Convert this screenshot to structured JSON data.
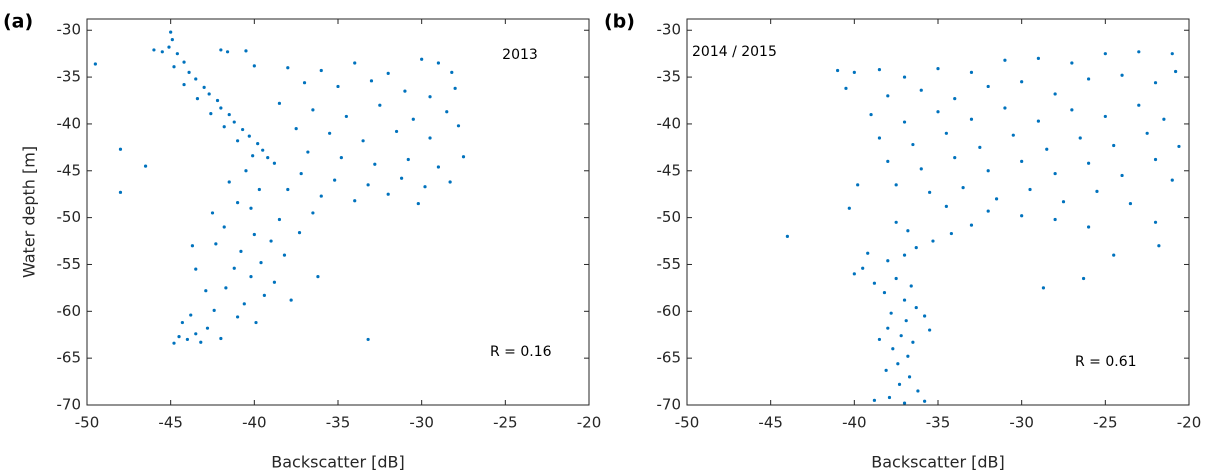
{
  "chart_data": [
    {
      "type": "scatter",
      "panel_label": "(a)",
      "annotation": "2013",
      "stat": "R = 0.16",
      "xlabel": "Backscatter [dB]",
      "ylabel": "Water depth [m]",
      "color": "#0072bd",
      "xlim": [
        -50,
        -20
      ],
      "ylim": [
        -70,
        -28.8
      ],
      "xticks": [
        -50,
        -45,
        -40,
        -35,
        -30,
        -25,
        -20
      ],
      "yticks": [
        -70,
        -65,
        -60,
        -55,
        -50,
        -45,
        -40,
        -35,
        -30
      ],
      "x": [
        -45,
        -44.9,
        -45.1,
        -44.6,
        -45.5,
        -44.2,
        -44.8,
        -43.9,
        -43.5,
        -44.2,
        -43,
        -42.7,
        -43.4,
        -42.2,
        -42,
        -42.6,
        -41.5,
        -41.2,
        -41.8,
        -40.7,
        -40.3,
        -41,
        -39.8,
        -39.5,
        -40.1,
        -39.2,
        -38.8,
        -42,
        -40.5,
        -40,
        -38,
        -36,
        -34,
        -32,
        -30,
        -29,
        -28.2,
        -37,
        -35,
        -33,
        -31,
        -29.5,
        -28,
        -38.5,
        -36.5,
        -34.5,
        -32.5,
        -30.5,
        -28.5,
        -37.5,
        -35.5,
        -33.5,
        -31.5,
        -29.5,
        -27.8,
        -36.8,
        -34.8,
        -32.8,
        -30.8,
        -29,
        -27.5,
        -37.2,
        -35.2,
        -33.2,
        -31.2,
        -29.8,
        -28.3,
        -36,
        -34,
        -32,
        -30.2,
        -38,
        -36.5,
        -40.5,
        -41.5,
        -39.7,
        -41,
        -40.2,
        -42.5,
        -38.5,
        -41.8,
        -40,
        -39,
        -42.3,
        -40.8,
        -38.2,
        -39.6,
        -41.2,
        -40.2,
        -38.8,
        -41.7,
        -39.4,
        -37.8,
        -40.6,
        -42.4,
        -41,
        -39.9,
        -42.8,
        -43.5,
        -44,
        -43.2,
        -44.5,
        -44.3,
        -43.8,
        -42,
        -43.7,
        -43.5,
        -42.9,
        -44.8,
        -49.5,
        -48,
        -48,
        -46.5,
        -33.2,
        -36.2,
        -37.3,
        -46,
        -41.6
      ],
      "y": [
        -30.2,
        -31,
        -31.8,
        -32.5,
        -32.3,
        -33.4,
        -33.9,
        -34.5,
        -35.2,
        -35.8,
        -36.1,
        -36.8,
        -37.3,
        -37.5,
        -38.3,
        -38.9,
        -39,
        -39.8,
        -40.3,
        -40.6,
        -41.3,
        -41.8,
        -42.1,
        -42.8,
        -43.4,
        -43.6,
        -44.2,
        -32.1,
        -32.2,
        -33.8,
        -34,
        -34.3,
        -33.5,
        -34.6,
        -33.1,
        -33.5,
        -34.5,
        -35.6,
        -36,
        -35.4,
        -36.5,
        -37.1,
        -36.2,
        -37.8,
        -38.5,
        -39.2,
        -38,
        -39.5,
        -38.7,
        -40.5,
        -41,
        -41.8,
        -40.8,
        -41.5,
        -40.2,
        -43,
        -43.6,
        -44.3,
        -43.8,
        -44.6,
        -43.5,
        -45.3,
        -46,
        -46.5,
        -45.8,
        -46.7,
        -46.2,
        -47.7,
        -48.2,
        -47.5,
        -48.5,
        -47,
        -49.5,
        -45,
        -46.2,
        -47,
        -48.4,
        -49,
        -49.5,
        -50.2,
        -51,
        -51.8,
        -52.5,
        -52.8,
        -53.6,
        -54,
        -54.8,
        -55.4,
        -56.3,
        -56.9,
        -57.5,
        -58.3,
        -58.8,
        -59.2,
        -59.9,
        -60.6,
        -61.2,
        -61.8,
        -62.4,
        -63,
        -63.3,
        -62.7,
        -61.2,
        -60.4,
        -62.9,
        -53,
        -55.5,
        -57.8,
        -63.4,
        -33.6,
        -42.7,
        -47.3,
        -44.5,
        -63,
        -56.3,
        -51.6,
        -32.1,
        -32.3
      ]
    },
    {
      "type": "scatter",
      "panel_label": "(b)",
      "annotation": "2014 / 2015",
      "stat": "R = 0.61",
      "xlabel": "Backscatter [dB]",
      "color": "#0072bd",
      "xlim": [
        -50,
        -20
      ],
      "ylim": [
        -70,
        -28.8
      ],
      "xticks": [
        -50,
        -45,
        -40,
        -35,
        -30,
        -25,
        -20
      ],
      "yticks": [
        -70,
        -65,
        -60,
        -55,
        -50,
        -45,
        -40,
        -35,
        -30
      ],
      "x": [
        -41,
        -40,
        -38.5,
        -37,
        -35,
        -33,
        -31,
        -29,
        -27,
        -25,
        -23,
        -21,
        -40.5,
        -38,
        -36,
        -34,
        -32,
        -30,
        -28,
        -26,
        -24,
        -22,
        -20.8,
        -39,
        -37,
        -35,
        -33,
        -31,
        -29,
        -27,
        -25,
        -23,
        -21.5,
        -38.5,
        -36.5,
        -34.5,
        -32.5,
        -30.5,
        -28.5,
        -26.5,
        -24.5,
        -22.5,
        -20.6,
        -38,
        -36,
        -34,
        -32,
        -30,
        -28,
        -26,
        -24,
        -22,
        -21,
        -37.5,
        -35.5,
        -33.5,
        -31.5,
        -29.5,
        -27.5,
        -25.5,
        -23.5,
        -22,
        -21.8,
        -26,
        -28,
        -24.5,
        -26.3,
        -28.7,
        -34.5,
        -32,
        -30,
        -33,
        -34.2,
        -35.3,
        -36.3,
        -37,
        -38,
        -39.5,
        -40,
        -39.2,
        -36.8,
        -37.5,
        -37.5,
        -36.6,
        -38.2,
        -37,
        -36.3,
        -37.8,
        -36.9,
        -38,
        -37.2,
        -36.5,
        -37.7,
        -36.8,
        -37.4,
        -38.1,
        -36.7,
        -37.3,
        -36.2,
        -37.9,
        -37,
        -38.8,
        -35.8,
        -38.5,
        -35.8,
        -38.8,
        -35.5,
        -44,
        -39.8,
        -40.3
      ],
      "y": [
        -34.3,
        -34.5,
        -34.2,
        -35,
        -34.1,
        -34.5,
        -33.2,
        -33,
        -33.5,
        -32.5,
        -32.3,
        -32.5,
        -36.2,
        -37,
        -36.4,
        -37.3,
        -36,
        -35.5,
        -36.8,
        -35.2,
        -34.8,
        -35.6,
        -34.4,
        -39,
        -39.8,
        -38.7,
        -39.5,
        -38.3,
        -39.7,
        -38.5,
        -39.2,
        -38,
        -39.5,
        -41.5,
        -42.2,
        -41,
        -42.5,
        -41.2,
        -42.7,
        -41.5,
        -42.3,
        -41,
        -42.4,
        -44,
        -44.8,
        -43.6,
        -45,
        -44,
        -45.3,
        -44.2,
        -45.5,
        -43.8,
        -46,
        -46.5,
        -47.3,
        -46.8,
        -48,
        -47,
        -48.3,
        -47.2,
        -48.5,
        -50.5,
        -53,
        -51,
        -50.2,
        -54,
        -56.5,
        -57.5,
        -48.8,
        -49.3,
        -49.8,
        -50.8,
        -51.7,
        -52.5,
        -53.2,
        -54,
        -54.6,
        -55.4,
        -56,
        -53.8,
        -51.4,
        -50.5,
        -56.5,
        -57.3,
        -58,
        -58.8,
        -59.6,
        -60.2,
        -61,
        -61.8,
        -62.6,
        -63.3,
        -64,
        -64.8,
        -65.6,
        -66.3,
        -67,
        -67.8,
        -68.5,
        -69.2,
        -69.8,
        -69.5,
        -69.6,
        -63,
        -60.5,
        -57,
        -62,
        -52,
        -46.5,
        -49
      ]
    }
  ]
}
